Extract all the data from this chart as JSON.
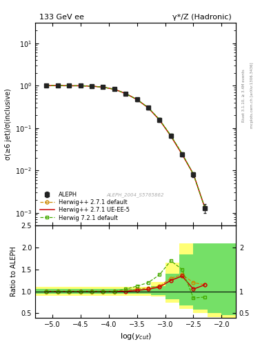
{
  "title_left": "133 GeV ee",
  "title_right": "γ*/Z (Hadronic)",
  "ylabel_main": "σ(≥6 jet)/σ(inclusive)",
  "ylabel_ratio": "Ratio to ALEPH",
  "xlabel": "log($y_{cut}$)",
  "watermark": "ALEPH_2004_S5765862",
  "right_label": "Rivet 3.1.10, ≥ 3.4M events",
  "right_label2": "mcplots.cern.ch [arXiv:1306.3436]",
  "x_data": [
    -5.1,
    -4.9,
    -4.7,
    -4.5,
    -4.3,
    -4.1,
    -3.9,
    -3.7,
    -3.5,
    -3.3,
    -3.1,
    -2.9,
    -2.7,
    -2.5,
    -2.3
  ],
  "aleph_y": [
    1.0,
    1.0,
    0.99,
    0.99,
    0.97,
    0.92,
    0.82,
    0.65,
    0.47,
    0.3,
    0.155,
    0.065,
    0.024,
    0.008,
    0.0013
  ],
  "aleph_yerr_lo": [
    0.02,
    0.02,
    0.02,
    0.02,
    0.03,
    0.04,
    0.04,
    0.04,
    0.04,
    0.03,
    0.015,
    0.007,
    0.003,
    0.001,
    0.0003
  ],
  "aleph_yerr_hi": [
    0.02,
    0.02,
    0.02,
    0.02,
    0.03,
    0.04,
    0.04,
    0.04,
    0.04,
    0.03,
    0.015,
    0.007,
    0.003,
    0.001,
    0.0003
  ],
  "hw271_def_y": [
    1.0,
    1.0,
    0.99,
    0.99,
    0.97,
    0.92,
    0.82,
    0.65,
    0.47,
    0.3,
    0.155,
    0.065,
    0.024,
    0.008,
    0.00135
  ],
  "hw271_ue_y": [
    1.0,
    1.0,
    0.99,
    0.99,
    0.97,
    0.92,
    0.82,
    0.65,
    0.47,
    0.3,
    0.155,
    0.065,
    0.024,
    0.0082,
    0.00135
  ],
  "hw721_def_y": [
    1.0,
    1.0,
    0.99,
    0.99,
    0.97,
    0.92,
    0.82,
    0.65,
    0.47,
    0.305,
    0.158,
    0.067,
    0.025,
    0.0082,
    0.00135
  ],
  "ratio_hw271_def": [
    1.0,
    1.0,
    1.0,
    1.0,
    1.0,
    1.0,
    1.0,
    1.02,
    1.05,
    1.08,
    1.12,
    1.3,
    1.38,
    1.2,
    1.15
  ],
  "ratio_hw271_ue": [
    1.0,
    1.0,
    1.0,
    1.0,
    1.0,
    1.0,
    1.0,
    1.0,
    1.02,
    1.05,
    1.1,
    1.25,
    1.35,
    1.05,
    1.15
  ],
  "ratio_hw721_def": [
    1.0,
    1.0,
    1.0,
    1.0,
    1.0,
    1.0,
    1.0,
    1.05,
    1.12,
    1.2,
    1.38,
    1.7,
    1.5,
    0.85,
    0.87
  ],
  "xlim": [
    -5.3,
    -1.75
  ],
  "ylim_main": [
    0.0005,
    30
  ],
  "ylim_ratio": [
    0.4,
    2.5
  ],
  "color_aleph": "#222222",
  "color_hw271_def": "#cc8800",
  "color_hw271_ue": "#cc0000",
  "color_hw721_def": "#44aa00",
  "band_x_edges": [
    -5.3,
    -5.0,
    -4.75,
    -4.5,
    -4.25,
    -4.0,
    -3.75,
    -3.5,
    -3.25,
    -3.0,
    -2.75,
    -2.5,
    -2.25,
    -2.0,
    -1.75
  ],
  "band_yellow_lo": [
    0.9,
    0.9,
    0.9,
    0.9,
    0.9,
    0.9,
    0.9,
    0.9,
    0.88,
    0.75,
    0.6,
    0.5,
    0.42,
    0.38
  ],
  "band_yellow_hi": [
    1.1,
    1.1,
    1.1,
    1.1,
    1.1,
    1.1,
    1.1,
    1.1,
    1.22,
    1.65,
    2.1,
    2.1,
    2.1,
    2.1
  ],
  "band_green_lo": [
    0.95,
    0.95,
    0.95,
    0.95,
    0.95,
    0.95,
    0.95,
    0.95,
    0.92,
    0.82,
    0.68,
    0.58,
    0.5,
    0.46
  ],
  "band_green_hi": [
    1.05,
    1.05,
    1.05,
    1.05,
    1.05,
    1.05,
    1.05,
    1.05,
    1.12,
    1.4,
    1.85,
    2.1,
    2.1,
    2.1
  ]
}
